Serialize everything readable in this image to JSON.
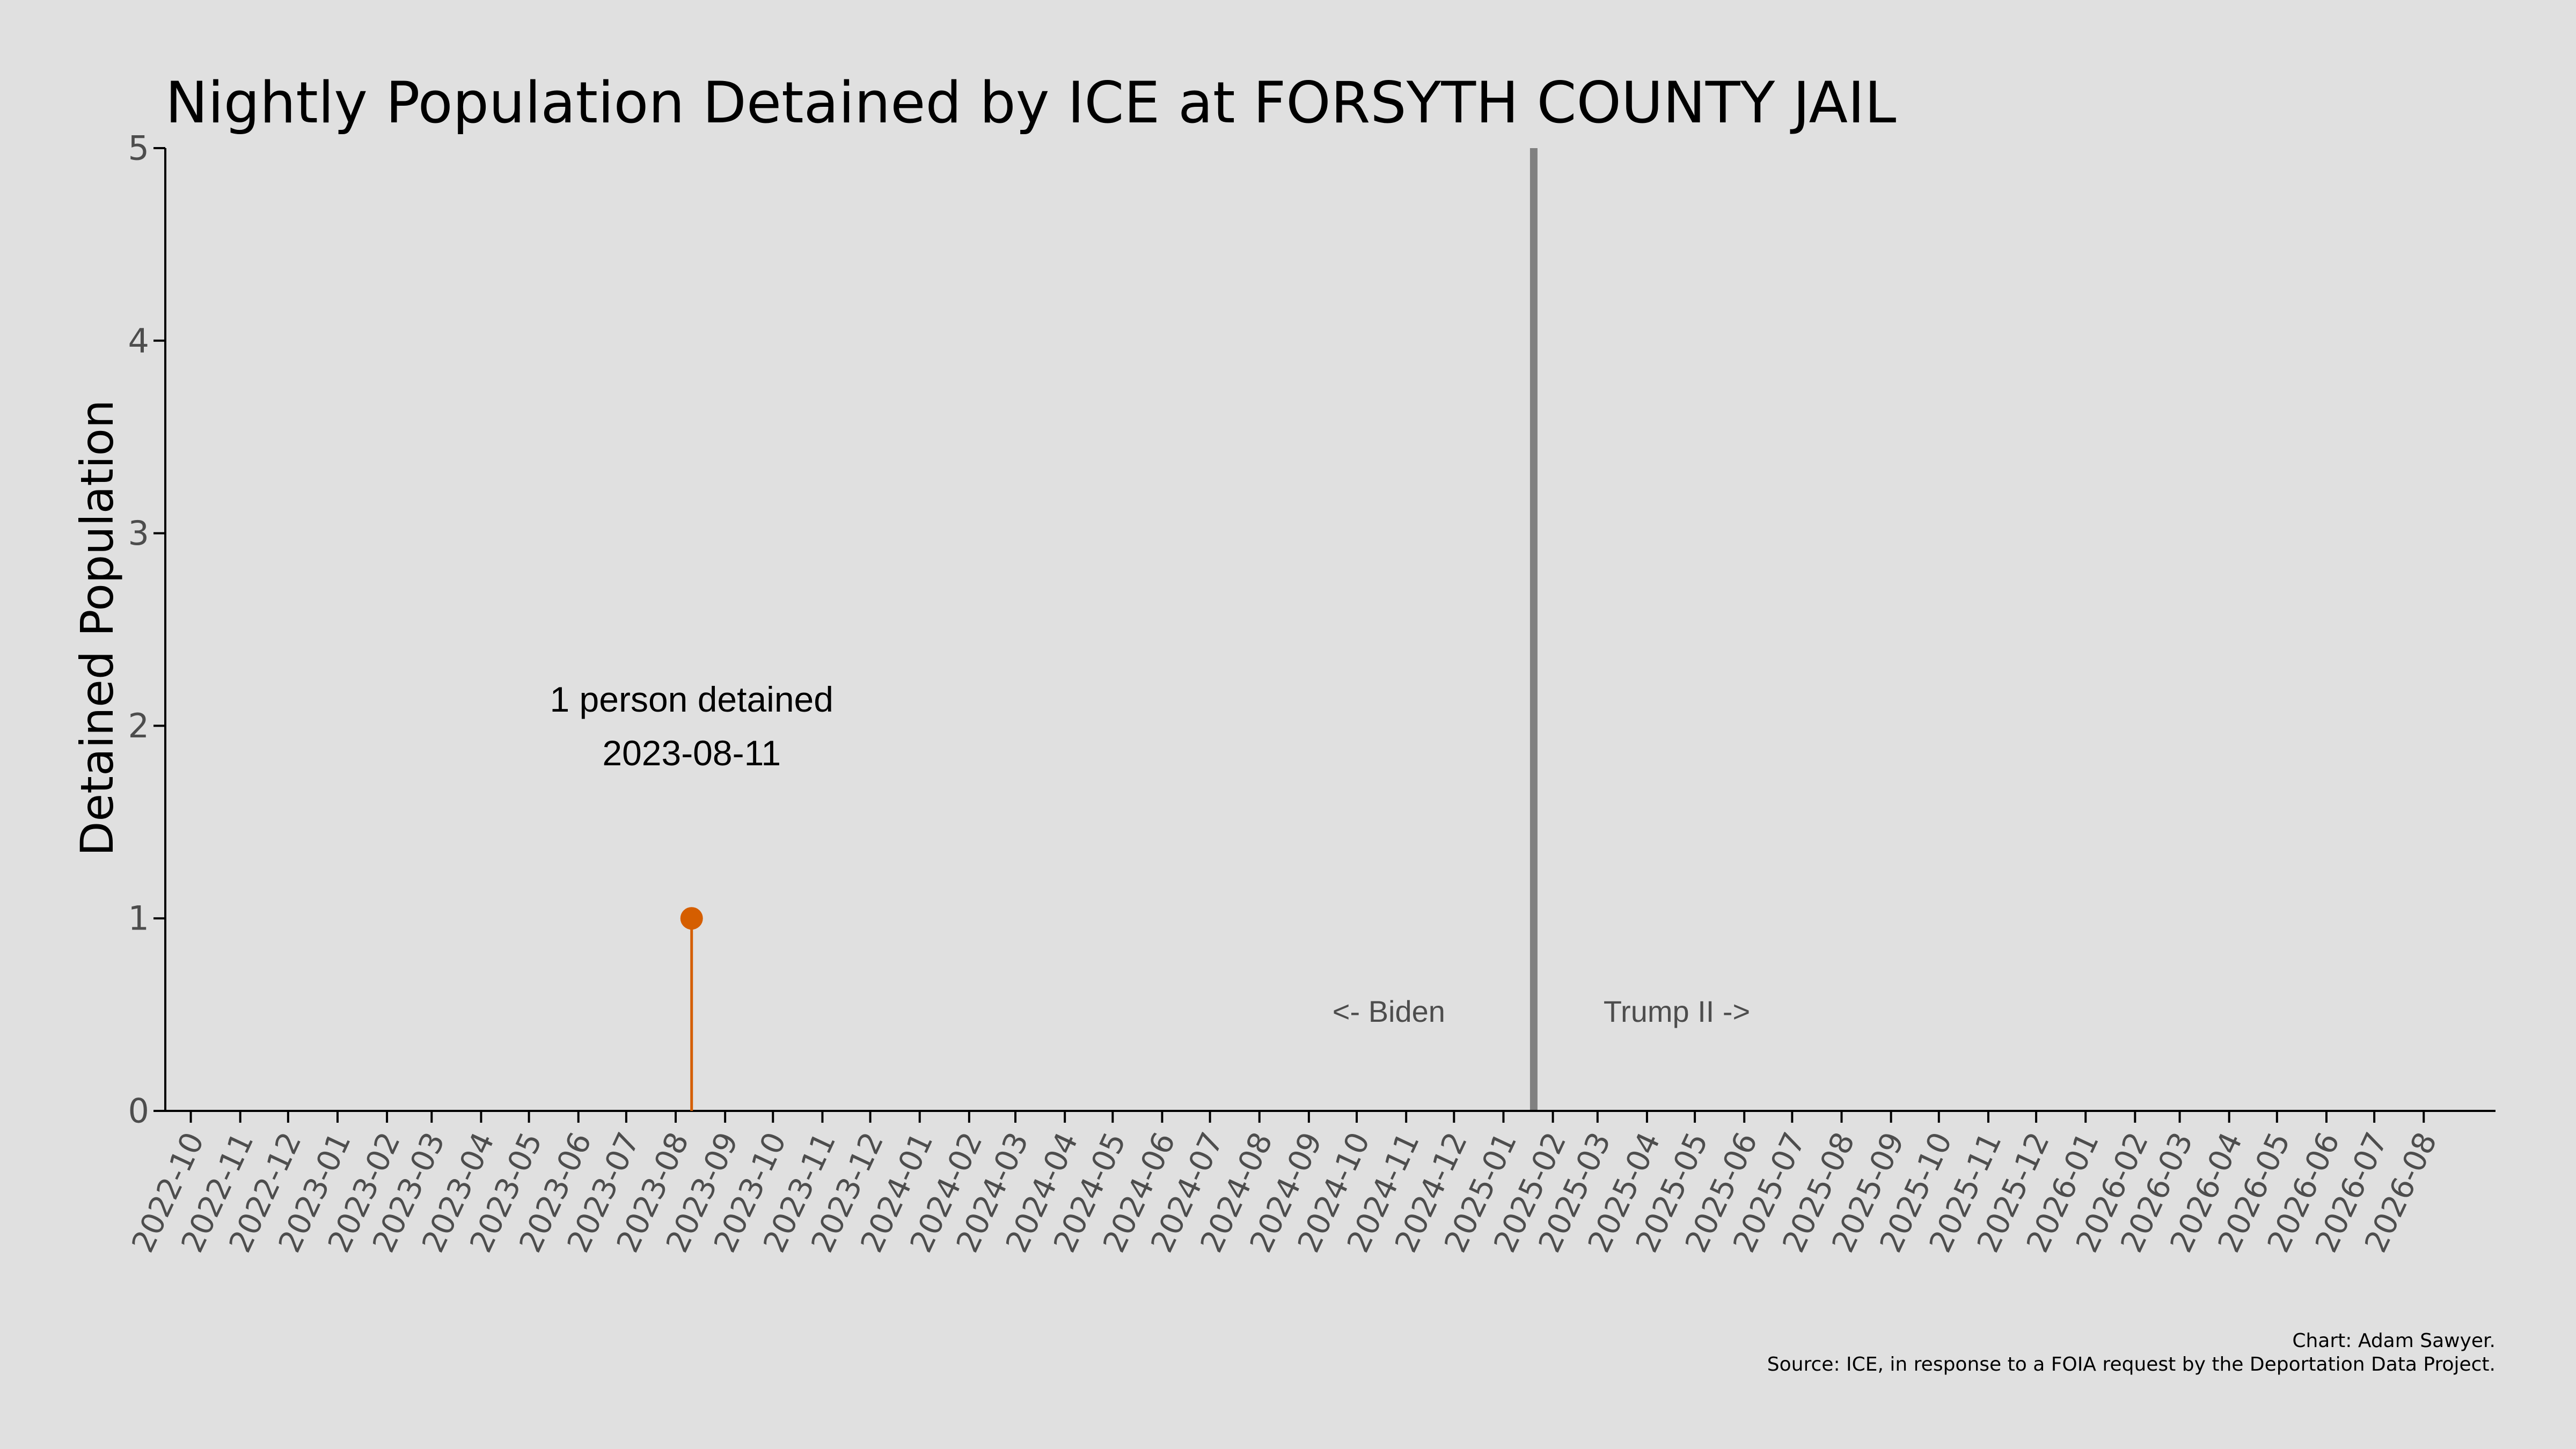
{
  "chart_data": {
    "type": "line",
    "title": "Nightly Population Detained by ICE at FORSYTH COUNTY JAIL",
    "ylabel": "Detained Population",
    "xlabel": "",
    "ylim": [
      0,
      5
    ],
    "y_ticks": [
      "0",
      "1",
      "2",
      "3",
      "4",
      "5"
    ],
    "x_range": [
      "2022-09-15",
      "2026-09-15"
    ],
    "x_ticks": [
      "2022-10",
      "2022-11",
      "2022-12",
      "2023-01",
      "2023-02",
      "2023-03",
      "2023-04",
      "2023-05",
      "2023-06",
      "2023-07",
      "2023-08",
      "2023-09",
      "2023-10",
      "2023-11",
      "2023-12",
      "2024-01",
      "2024-02",
      "2024-03",
      "2024-04",
      "2024-05",
      "2024-06",
      "2024-07",
      "2024-08",
      "2024-09",
      "2024-10",
      "2024-11",
      "2024-12",
      "2025-01",
      "2025-02",
      "2025-03",
      "2025-04",
      "2025-05",
      "2025-06",
      "2025-07",
      "2025-08",
      "2025-09",
      "2025-10",
      "2025-11",
      "2025-12",
      "2026-01",
      "2026-02",
      "2026-03",
      "2026-04",
      "2026-05",
      "2026-06",
      "2026-07",
      "2026-08"
    ],
    "x_tick_rotation_deg": 65,
    "grid": false,
    "series": [
      {
        "color": "#d55e00",
        "points": [
          {
            "x": "2023-08-11",
            "y": 1
          }
        ]
      }
    ],
    "annotation": {
      "line1": "1 person detained",
      "line2": "2023-08-11"
    },
    "divider": {
      "x": "2025-01-20",
      "color": "#808080",
      "left_label": "<- Biden",
      "right_label": "Trump II ->"
    },
    "credits": {
      "line1": "Chart: Adam Sawyer.",
      "line2": "Source: ICE, in response to a FOIA request by the Deportation Data Project."
    }
  }
}
